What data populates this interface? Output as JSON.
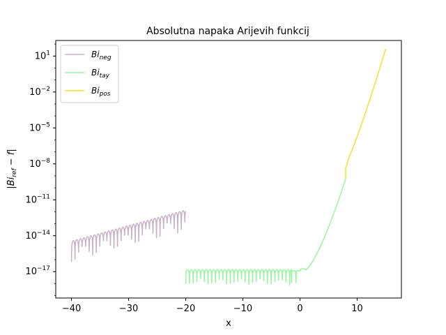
{
  "chart_data": {
    "type": "line",
    "title": "Absolutna napaka Arijevih funkcij",
    "xlabel": "x",
    "ylabel": "|Bi_ref − f|",
    "xlim": [
      -42.75,
      17.75
    ],
    "ylim_log10": [
      -19.2,
      2.3
    ],
    "yscale": "log",
    "x_ticks": [
      -40,
      -30,
      -20,
      -10,
      0,
      10
    ],
    "y_ticks": [
      {
        "exp": 1,
        "label": "10^1"
      },
      {
        "exp": -2,
        "label": "10^-2"
      },
      {
        "exp": -5,
        "label": "10^-5"
      },
      {
        "exp": -8,
        "label": "10^-8"
      },
      {
        "exp": -11,
        "label": "10^-11"
      },
      {
        "exp": -14,
        "label": "10^-14"
      },
      {
        "exp": -17,
        "label": "10^-17"
      }
    ],
    "legend_position": "upper-left",
    "series": [
      {
        "name": "Bi_neg",
        "base": "Bi",
        "sub": "neg",
        "color": "#c8b2c8",
        "x_range": [
          -40,
          -20
        ],
        "log10_range": [
          -14.8,
          -12.2
        ],
        "dip_depth": 0.9,
        "osc_period": 0.62
      },
      {
        "name": "Bi_tay",
        "base": "Bi",
        "sub": "tay",
        "color": "#98f5a0",
        "x_range": [
          -20,
          8
        ]
      },
      {
        "name": "Bi_pos",
        "base": "Bi",
        "sub": "pos",
        "color": "#f0e030",
        "x_range": [
          8,
          15
        ],
        "log10_range": [
          -8.3,
          1.6
        ]
      }
    ]
  }
}
